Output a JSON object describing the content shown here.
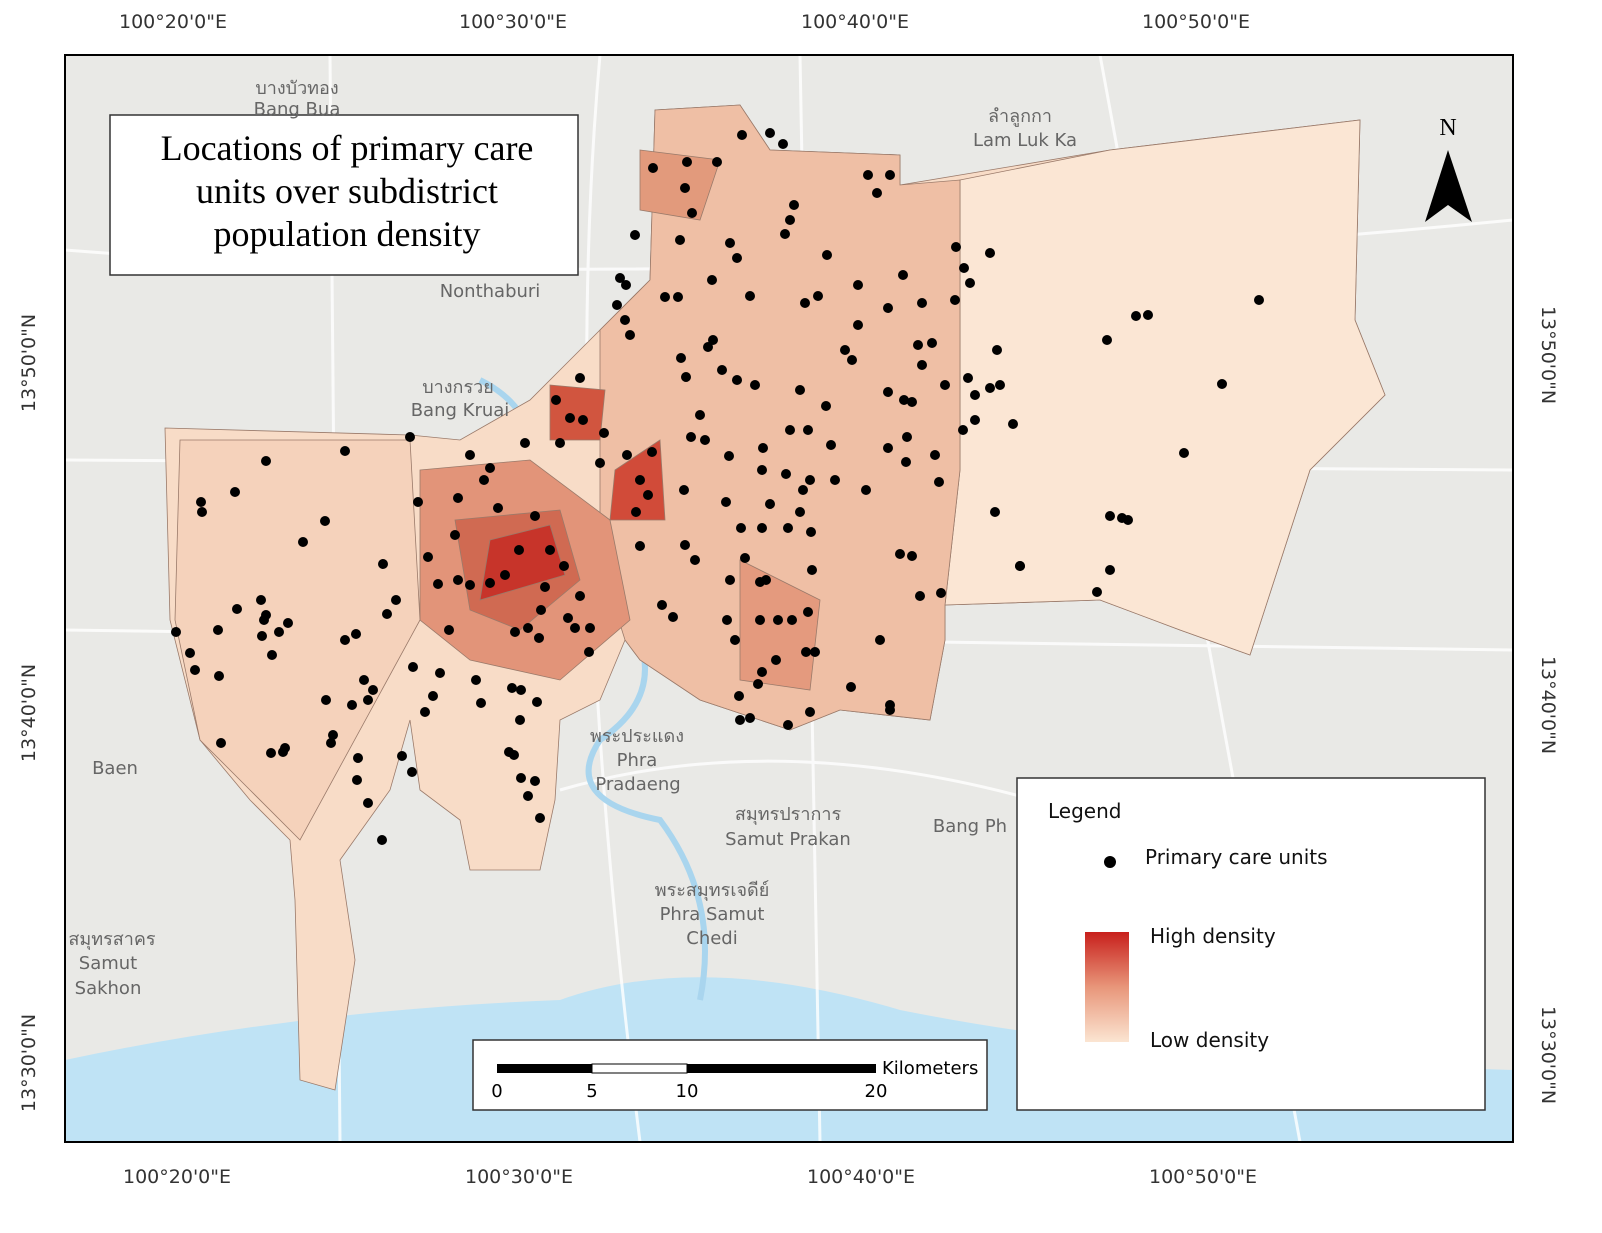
{
  "title_lines": [
    "Locations of primary care",
    "units over subdistrict",
    "population density"
  ],
  "graticule": {
    "top": [
      "100°20'0\"E",
      "100°30'0\"E",
      "100°40'0\"E",
      "100°50'0\"E"
    ],
    "bottom": [
      "100°20'0\"E",
      "100°30'0\"E",
      "100°40'0\"E",
      "100°50'0\"E"
    ],
    "left": [
      "13°50'0\"N",
      "13°40'0\"N",
      "13°30'0\"N"
    ],
    "right": [
      "13°50'0\"N",
      "13°40'0\"N",
      "13°30'0\"N"
    ]
  },
  "north": "N",
  "legend": {
    "title": "Legend",
    "points": "Primary care units",
    "high": "High density",
    "low": "Low density"
  },
  "scale_bar": {
    "unit": "Kilometers",
    "ticks": [
      "0",
      "5",
      "10",
      "20"
    ]
  },
  "places": [
    "บางบัวทอง",
    "Bang Bua",
    "Nonthaburi",
    "บางกรวย",
    "Bang Kruai",
    "ลำลูกกา",
    "Lam Luk Ka",
    "พระประแดง",
    "Phra",
    "Pradaeng",
    "สมุทรปราการ",
    "Samut Prakan",
    "พระสมุทรเจดีย์",
    "Phra Samut",
    "Chedi",
    "สมุทรสาคร",
    "Samut",
    "Sakhon",
    "Bang Ph",
    "Baen"
  ]
}
